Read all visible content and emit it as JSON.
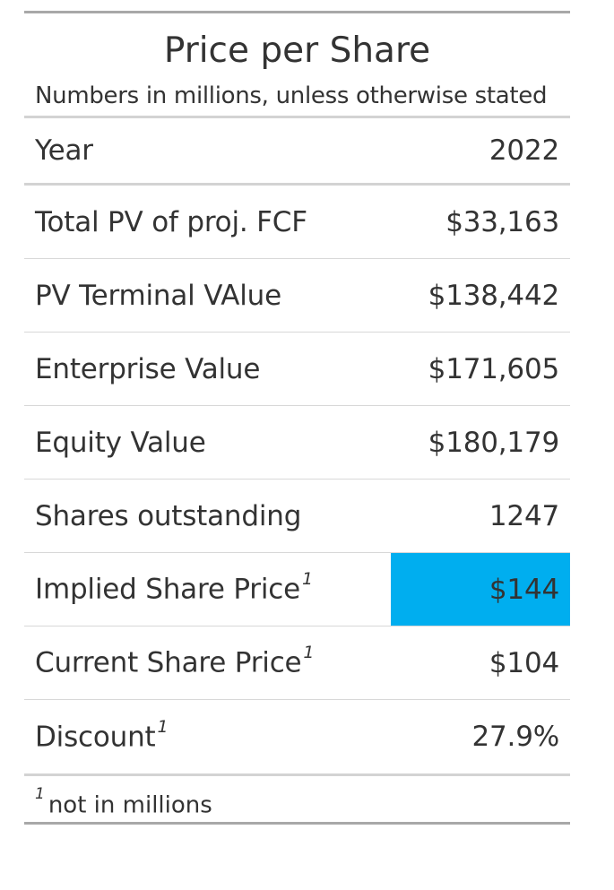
{
  "table": {
    "title": "Price per Share",
    "subtitle": "Numbers in millions, unless otherwise stated",
    "column_headers": {
      "label": "Year",
      "value": "2022"
    },
    "rows": [
      {
        "label": "Total PV of proj. FCF",
        "value": "$33,163",
        "footnote_mark": ""
      },
      {
        "label": "PV Terminal VAlue",
        "value": "$138,442",
        "footnote_mark": ""
      },
      {
        "label": "Enterprise Value",
        "value": "$171,605",
        "footnote_mark": ""
      },
      {
        "label": "Equity Value",
        "value": "$180,179",
        "footnote_mark": ""
      },
      {
        "label": "Shares outstanding",
        "value": "1247",
        "footnote_mark": ""
      },
      {
        "label": "Implied Share Price",
        "value": "$144",
        "footnote_mark": "1"
      },
      {
        "label": "Current Share Price",
        "value": "$104",
        "footnote_mark": "1"
      },
      {
        "label": "Discount",
        "value": "27.9%",
        "footnote_mark": "1"
      }
    ],
    "highlight_color": "#00aeef",
    "footnote": {
      "mark": "1",
      "text": "not in millions"
    }
  }
}
